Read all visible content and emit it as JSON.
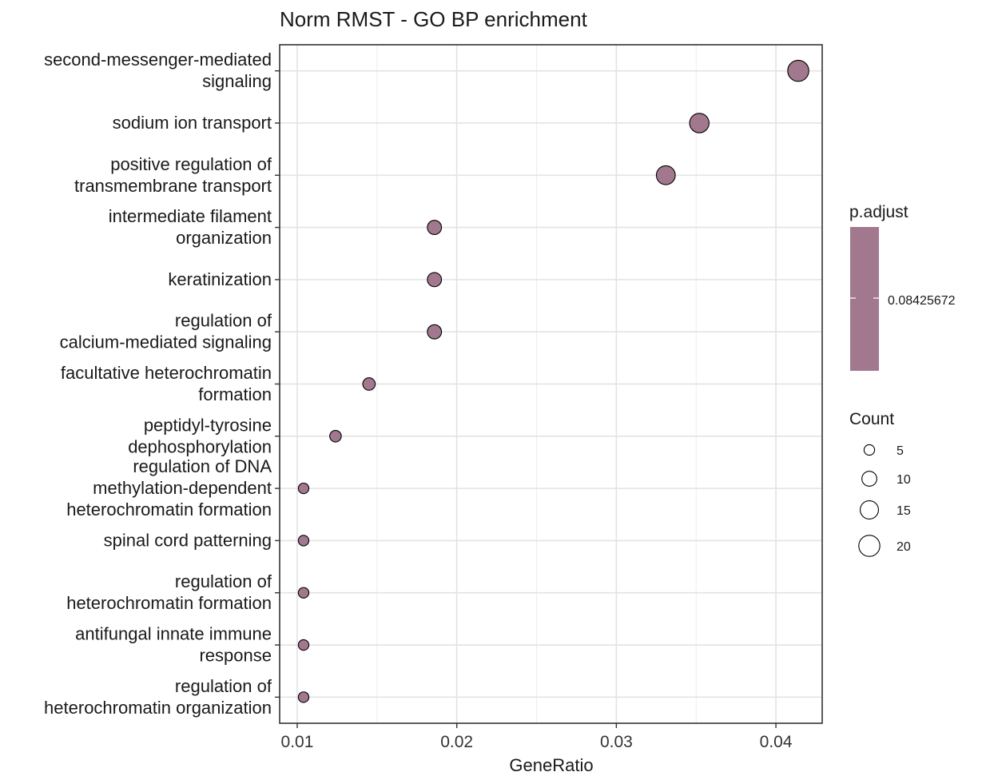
{
  "chart_data": {
    "type": "scatter",
    "title": "Norm RMST - GO BP enrichment",
    "xlabel": "GeneRatio",
    "ylabel": "",
    "xlim": [
      0.0089,
      0.0429
    ],
    "xticks": [
      0.01,
      0.02,
      0.03,
      0.04
    ],
    "xtick_labels": [
      "0.01",
      "0.02",
      "0.03",
      "0.04"
    ],
    "grid": true,
    "categories": [
      [
        "second-messenger-mediated",
        "signaling"
      ],
      [
        "sodium ion transport"
      ],
      [
        "positive regulation of",
        "transmembrane transport"
      ],
      [
        "intermediate filament",
        "organization"
      ],
      [
        "keratinization"
      ],
      [
        "regulation of",
        "calcium-mediated signaling"
      ],
      [
        "facultative heterochromatin",
        "formation"
      ],
      [
        "peptidyl-tyrosine",
        "dephosphorylation"
      ],
      [
        "regulation of DNA",
        "methylation-dependent",
        "heterochromatin formation"
      ],
      [
        "spinal cord patterning"
      ],
      [
        "regulation of",
        "heterochromatin formation"
      ],
      [
        "antifungal innate immune",
        "response"
      ],
      [
        "regulation of",
        "heterochromatin organization"
      ]
    ],
    "x": [
      0.0414,
      0.0352,
      0.0331,
      0.0186,
      0.0186,
      0.0186,
      0.0145,
      0.0124,
      0.0104,
      0.0104,
      0.0104,
      0.0104,
      0.0104
    ],
    "count": [
      20,
      17,
      16,
      9,
      9,
      9,
      7,
      6,
      5,
      5,
      5,
      5,
      5
    ],
    "p_adjust": [
      0.08425672,
      0.08425672,
      0.08425672,
      0.08425672,
      0.08425672,
      0.08425672,
      0.08425672,
      0.08425672,
      0.08425672,
      0.08425672,
      0.08425672,
      0.08425672,
      0.08425672
    ],
    "point_color": "#a2788f",
    "legend": {
      "color_title": "p.adjust",
      "color_value_label": "0.08425672",
      "size_title": "Count",
      "size_values": [
        5,
        10,
        15,
        20
      ],
      "size_labels": [
        "5",
        "10",
        "15",
        "20"
      ],
      "placement": "right"
    }
  }
}
